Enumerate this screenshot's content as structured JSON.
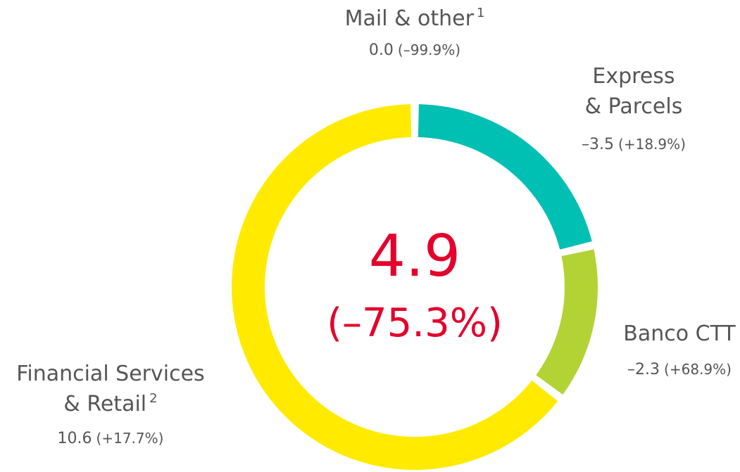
{
  "chart_data": {
    "type": "donut",
    "categories": [
      [
        "Mail & other"
      ],
      [
        "Express",
        "& Parcels"
      ],
      [
        "Banco CTT"
      ],
      [
        "Financial Services",
        "& Retail"
      ]
    ],
    "footnote_marks": {
      "0": "1",
      "3": "2"
    },
    "values": [
      0.0,
      -3.5,
      -2.3,
      10.6
    ],
    "value_labels": [
      "0.0",
      "–3.5",
      "–2.3",
      "10.6"
    ],
    "changes": [
      "(–99.9%)",
      "(+18.9%)",
      "(+68.9%)",
      "(+17.7%)"
    ],
    "colors": [
      "#8a8a8a",
      "#00bfb3",
      "#b3d234",
      "#ffea00"
    ],
    "total": 4.9,
    "total_change": "(–75.3%)",
    "total_color": "#e4002b"
  }
}
